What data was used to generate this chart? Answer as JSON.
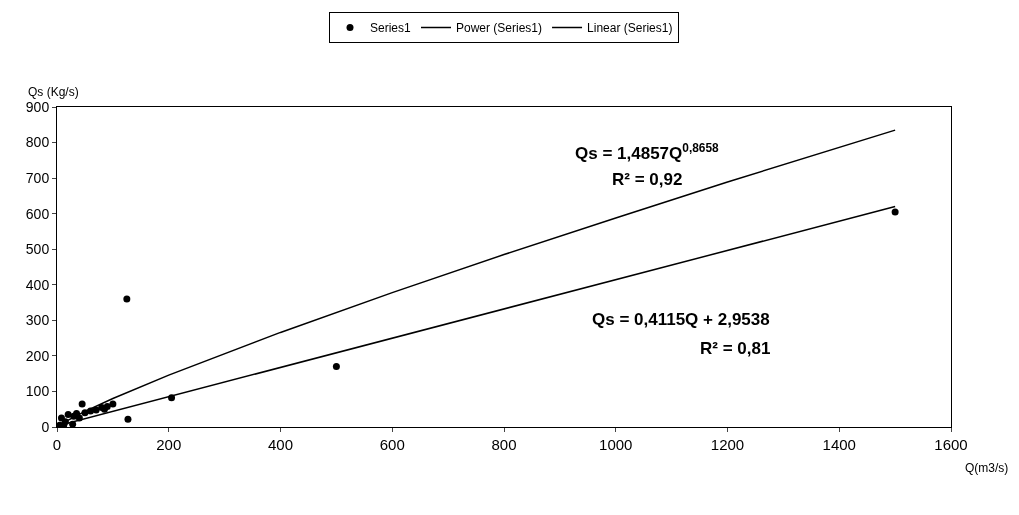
{
  "chart_data": {
    "type": "scatter",
    "xlabel": "Q(m3/s)",
    "ylabel": "Qs (Kg/s)",
    "xlim": [
      0,
      1600
    ],
    "xticks": [
      0,
      200,
      400,
      600,
      800,
      1000,
      1200,
      1400,
      1600
    ],
    "ylim": [
      0,
      900
    ],
    "yticks": [
      0,
      100,
      200,
      300,
      400,
      500,
      600,
      700,
      800,
      900
    ],
    "grid": false,
    "legend": "top",
    "series": [
      {
        "name": "Series1",
        "marker": "circle",
        "color": "#000000",
        "x": [
          5,
          8,
          12,
          15,
          20,
          28,
          30,
          35,
          40,
          45,
          50,
          60,
          70,
          80,
          85,
          90,
          100,
          125,
          127,
          205,
          500,
          1500
        ],
        "values": [
          5,
          25,
          5,
          15,
          35,
          8,
          30,
          38,
          25,
          65,
          40,
          45,
          48,
          55,
          50,
          58,
          65,
          360,
          22,
          82,
          170,
          605
        ]
      },
      {
        "name": "Power (Series1)",
        "type": "line",
        "marker": "none",
        "line_style": "solid",
        "color": "#000000",
        "x": [
          1,
          10,
          50,
          100,
          200,
          400,
          600,
          800,
          1000,
          1200,
          1500
        ],
        "values": [
          1,
          11,
          44,
          80,
          146,
          266,
          378,
          485,
          588,
          689,
          835
        ]
      },
      {
        "name": "Linear (Series1)",
        "type": "line",
        "marker": "none",
        "line_style": "solid",
        "color": "#000000",
        "x": [
          0,
          1500
        ],
        "values": [
          3,
          620
        ]
      }
    ],
    "annotations": [
      "Qs = 1,4857Q$^{0,8658}$",
      "R² = 0,92",
      "Qs = 0,4115Q + 2,9538",
      "R² = 0,81"
    ]
  }
}
